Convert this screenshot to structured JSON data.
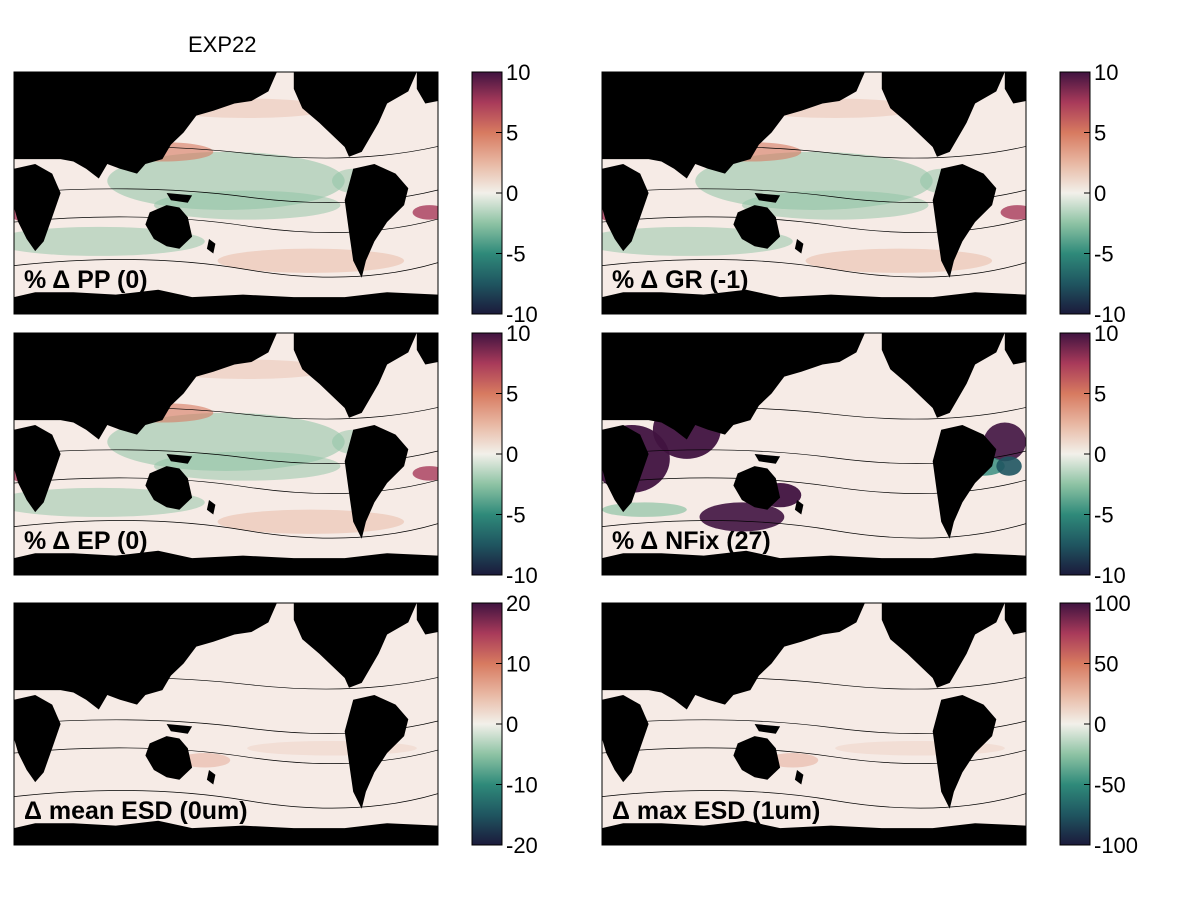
{
  "figure_title": "EXP22",
  "colors": {
    "land": "#000000",
    "ocean_neutral": "#f6ebe6",
    "cmap": [
      "#1b1a3b",
      "#1f5560",
      "#2f8a7a",
      "#8ec3a4",
      "#f2f0ea",
      "#e8b7a2",
      "#d77a60",
      "#a83a5a",
      "#401340"
    ]
  },
  "chart_data": [
    {
      "type": "heatmap",
      "panel": "PP",
      "label": "% Δ PP (0)",
      "colorbar_ticks": [
        "10",
        "5",
        "0",
        "-5",
        "-10"
      ],
      "clim": [
        -10,
        10
      ],
      "pattern": "mixed"
    },
    {
      "type": "heatmap",
      "panel": "GR",
      "label": "% Δ GR (-1)",
      "colorbar_ticks": [
        "10",
        "5",
        "0",
        "-5",
        "-10"
      ],
      "clim": [
        -10,
        10
      ],
      "pattern": "mixed"
    },
    {
      "type": "heatmap",
      "panel": "EP",
      "label": "% Δ EP (0)",
      "colorbar_ticks": [
        "10",
        "5",
        "0",
        "-5",
        "-10"
      ],
      "clim": [
        -10,
        10
      ],
      "pattern": "mixed"
    },
    {
      "type": "heatmap",
      "panel": "NFix",
      "label": "% Δ NFix (27)",
      "colorbar_ticks": [
        "10",
        "5",
        "0",
        "-5",
        "-10"
      ],
      "clim": [
        -10,
        10
      ],
      "pattern": "strong"
    },
    {
      "type": "heatmap",
      "panel": "meanESD",
      "label": "Δ mean ESD (0um)",
      "colorbar_ticks": [
        "20",
        "10",
        "0",
        "-10",
        "-20"
      ],
      "clim": [
        -20,
        20
      ],
      "pattern": "flat"
    },
    {
      "type": "heatmap",
      "panel": "maxESD",
      "label": "Δ max ESD (1um)",
      "colorbar_ticks": [
        "100",
        "50",
        "0",
        "-50",
        "-100"
      ],
      "clim": [
        -100,
        100
      ],
      "pattern": "flat"
    }
  ]
}
